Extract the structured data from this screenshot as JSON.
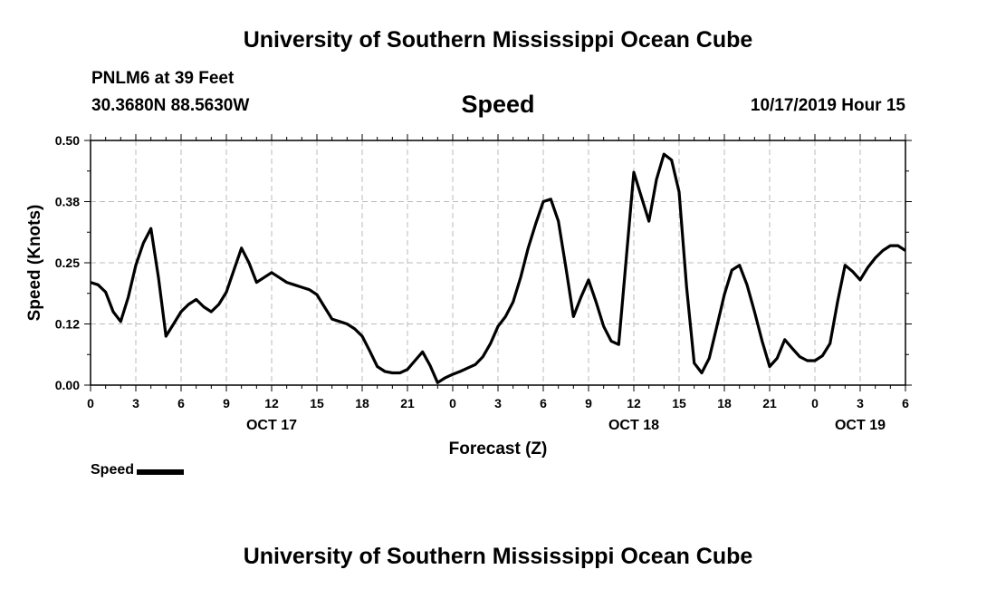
{
  "page": {
    "title_top": "University of Southern Mississippi Ocean Cube",
    "title_bottom": "University of Southern Mississippi Ocean Cube",
    "station": "PNLM6 at 39 Feet",
    "coords": "30.3680N 88.5630W",
    "datetime": "10/17/2019 Hour 15"
  },
  "chart_data": {
    "type": "line",
    "title": "Speed",
    "xlabel": "Forecast (Z)",
    "ylabel": "Speed (Knots)",
    "ylim": [
      0,
      0.5
    ],
    "yticks": [
      "0.00",
      "0.12",
      "0.25",
      "0.38",
      "0.50"
    ],
    "ytick_values": [
      0,
      0.125,
      0.25,
      0.375,
      0.5
    ],
    "xlim": [
      0,
      54
    ],
    "xticks": [
      "0",
      "3",
      "6",
      "9",
      "12",
      "15",
      "18",
      "21",
      "0",
      "3",
      "6",
      "9",
      "12",
      "15",
      "18",
      "21",
      "0",
      "3",
      "6"
    ],
    "xtick_hours": [
      0,
      3,
      6,
      9,
      12,
      15,
      18,
      21,
      24,
      27,
      30,
      33,
      36,
      39,
      42,
      45,
      48,
      51,
      54
    ],
    "date_labels": [
      {
        "label": "OCT 17",
        "hour": 12
      },
      {
        "label": "OCT 18",
        "hour": 36
      },
      {
        "label": "OCT 19",
        "hour": 51
      }
    ],
    "grid": true,
    "legend": {
      "label": "Speed",
      "position": "bottom-left"
    },
    "series": [
      {
        "name": "Speed",
        "x": [
          0,
          0.5,
          1,
          1.5,
          2,
          2.5,
          3,
          3.5,
          4,
          4.5,
          5,
          5.5,
          6,
          6.5,
          7,
          7.5,
          8,
          8.5,
          9,
          9.5,
          10,
          10.5,
          11,
          11.5,
          12,
          12.5,
          13,
          13.5,
          14,
          14.5,
          15,
          15.5,
          16,
          16.5,
          17,
          17.5,
          18,
          18.5,
          19,
          19.5,
          20,
          20.5,
          21,
          21.5,
          22,
          22.5,
          23,
          23.5,
          24,
          24.5,
          25,
          25.5,
          26,
          26.5,
          27,
          27.5,
          28,
          28.5,
          29,
          29.5,
          30,
          30.5,
          31,
          31.5,
          32,
          32.5,
          33,
          33.5,
          34,
          34.5,
          35,
          35.5,
          36,
          36.5,
          37,
          37.5,
          38,
          38.5,
          39,
          39.5,
          40,
          40.5,
          41,
          41.5,
          42,
          42.5,
          43,
          43.5,
          44,
          44.5,
          45,
          45.5,
          46,
          46.5,
          47,
          47.5,
          48,
          48.5,
          49,
          49.5,
          50,
          50.5,
          51,
          51.5,
          52,
          52.5,
          53,
          53.5,
          54
        ],
        "values": [
          0.21,
          0.205,
          0.19,
          0.15,
          0.13,
          0.18,
          0.245,
          0.29,
          0.32,
          0.22,
          0.1,
          0.125,
          0.15,
          0.165,
          0.175,
          0.16,
          0.15,
          0.165,
          0.19,
          0.235,
          0.28,
          0.25,
          0.21,
          0.22,
          0.23,
          0.22,
          0.21,
          0.205,
          0.2,
          0.195,
          0.185,
          0.16,
          0.135,
          0.13,
          0.125,
          0.115,
          0.1,
          0.07,
          0.038,
          0.028,
          0.025,
          0.025,
          0.032,
          0.05,
          0.068,
          0.04,
          0.005,
          0.015,
          0.022,
          0.028,
          0.035,
          0.042,
          0.058,
          0.085,
          0.12,
          0.14,
          0.17,
          0.22,
          0.28,
          0.33,
          0.375,
          0.38,
          0.335,
          0.24,
          0.14,
          0.18,
          0.215,
          0.17,
          0.12,
          0.09,
          0.083,
          0.26,
          0.435,
          0.385,
          0.335,
          0.42,
          0.472,
          0.46,
          0.395,
          0.2,
          0.045,
          0.025,
          0.055,
          0.12,
          0.185,
          0.235,
          0.245,
          0.205,
          0.15,
          0.09,
          0.038,
          0.055,
          0.093,
          0.075,
          0.058,
          0.05,
          0.05,
          0.06,
          0.085,
          0.17,
          0.245,
          0.232,
          0.215,
          0.24,
          0.26,
          0.275,
          0.285,
          0.285,
          0.275
        ]
      }
    ]
  }
}
